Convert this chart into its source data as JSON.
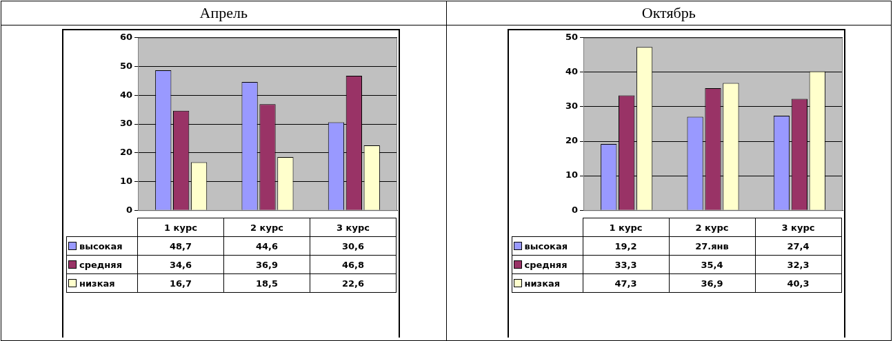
{
  "chart_data": [
    {
      "type": "bar",
      "title": "Апрель",
      "categories": [
        "1 курс",
        "2 курс",
        "3 курс"
      ],
      "ylim": [
        0,
        60
      ],
      "yticks": [
        0,
        10,
        20,
        30,
        40,
        50,
        60
      ],
      "grid": "y",
      "legend": "bottom",
      "series": [
        {
          "name": "высокая",
          "color": "#9999ff",
          "values": [
            48.7,
            44.6,
            30.6
          ],
          "value_labels": [
            "48,7",
            "44,6",
            "30,6"
          ]
        },
        {
          "name": "средняя",
          "color": "#993366",
          "values": [
            34.6,
            36.9,
            46.8
          ],
          "value_labels": [
            "34,6",
            "36,9",
            "46,8"
          ]
        },
        {
          "name": "низкая",
          "color": "#ffffcc",
          "values": [
            16.7,
            18.5,
            22.6
          ],
          "value_labels": [
            "16,7",
            "18,5",
            "22,6"
          ]
        }
      ]
    },
    {
      "type": "bar",
      "title": "Октябрь",
      "categories": [
        "1 курс",
        "2 курс",
        "3 курс"
      ],
      "ylim": [
        0,
        50
      ],
      "yticks": [
        0,
        10,
        20,
        30,
        40,
        50
      ],
      "grid": "y",
      "legend": "bottom",
      "series": [
        {
          "name": "высокая",
          "color": "#9999ff",
          "values": [
            19.2,
            27.1,
            27.4
          ],
          "value_labels": [
            "19,2",
            "27.янв",
            "27,4"
          ]
        },
        {
          "name": "средняя",
          "color": "#993366",
          "values": [
            33.3,
            35.4,
            32.3
          ],
          "value_labels": [
            "33,3",
            "35,4",
            "32,3"
          ]
        },
        {
          "name": "низкая",
          "color": "#ffffcc",
          "values": [
            47.3,
            36.9,
            40.3
          ],
          "value_labels": [
            "47,3",
            "36,9",
            "40,3"
          ]
        }
      ]
    }
  ]
}
